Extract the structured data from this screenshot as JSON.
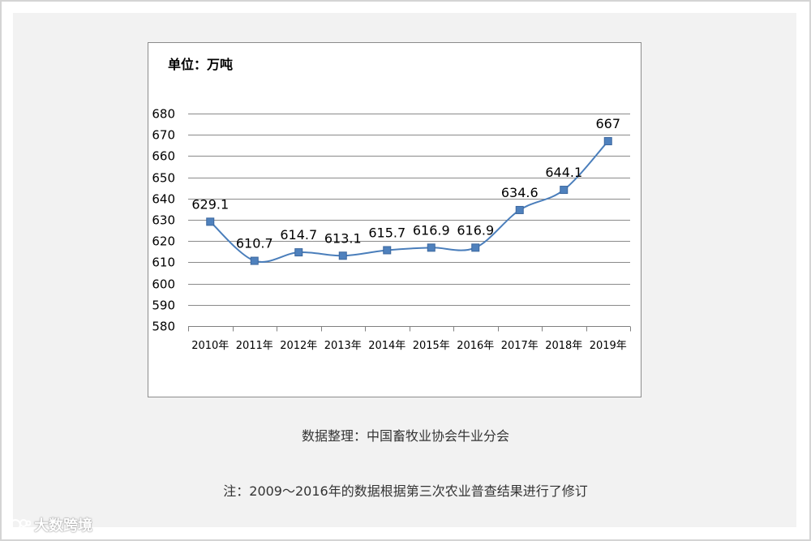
{
  "unit_label": "单位：万吨",
  "source_note": "数据整理：中国畜牧业协会牛业分会",
  "footnote": "注：2009～2016年的数据根据第三次农业普查结果进行了修订",
  "watermark": "大数跨境",
  "colors": {
    "line": "#4a7ebb",
    "marker": "#4f81bd",
    "grid": "#8a8a8a"
  },
  "chart_data": {
    "type": "line",
    "categories": [
      "2010年",
      "2011年",
      "2012年",
      "2013年",
      "2014年",
      "2015年",
      "2016年",
      "2017年",
      "2018年",
      "2019年"
    ],
    "values": [
      629.1,
      610.7,
      614.7,
      613.1,
      615.7,
      616.9,
      616.9,
      634.6,
      644.1,
      667
    ],
    "value_labels": [
      "629.1",
      "610.7",
      "614.7",
      "613.1",
      "615.7",
      "616.9",
      "616.9",
      "634.6",
      "644.1",
      "667"
    ],
    "yticks": [
      "580",
      "590",
      "600",
      "610",
      "620",
      "630",
      "640",
      "650",
      "660",
      "670",
      "680"
    ],
    "ylim": [
      580,
      680
    ],
    "grid": true,
    "smooth": true,
    "marker": "square",
    "legend": "none"
  }
}
